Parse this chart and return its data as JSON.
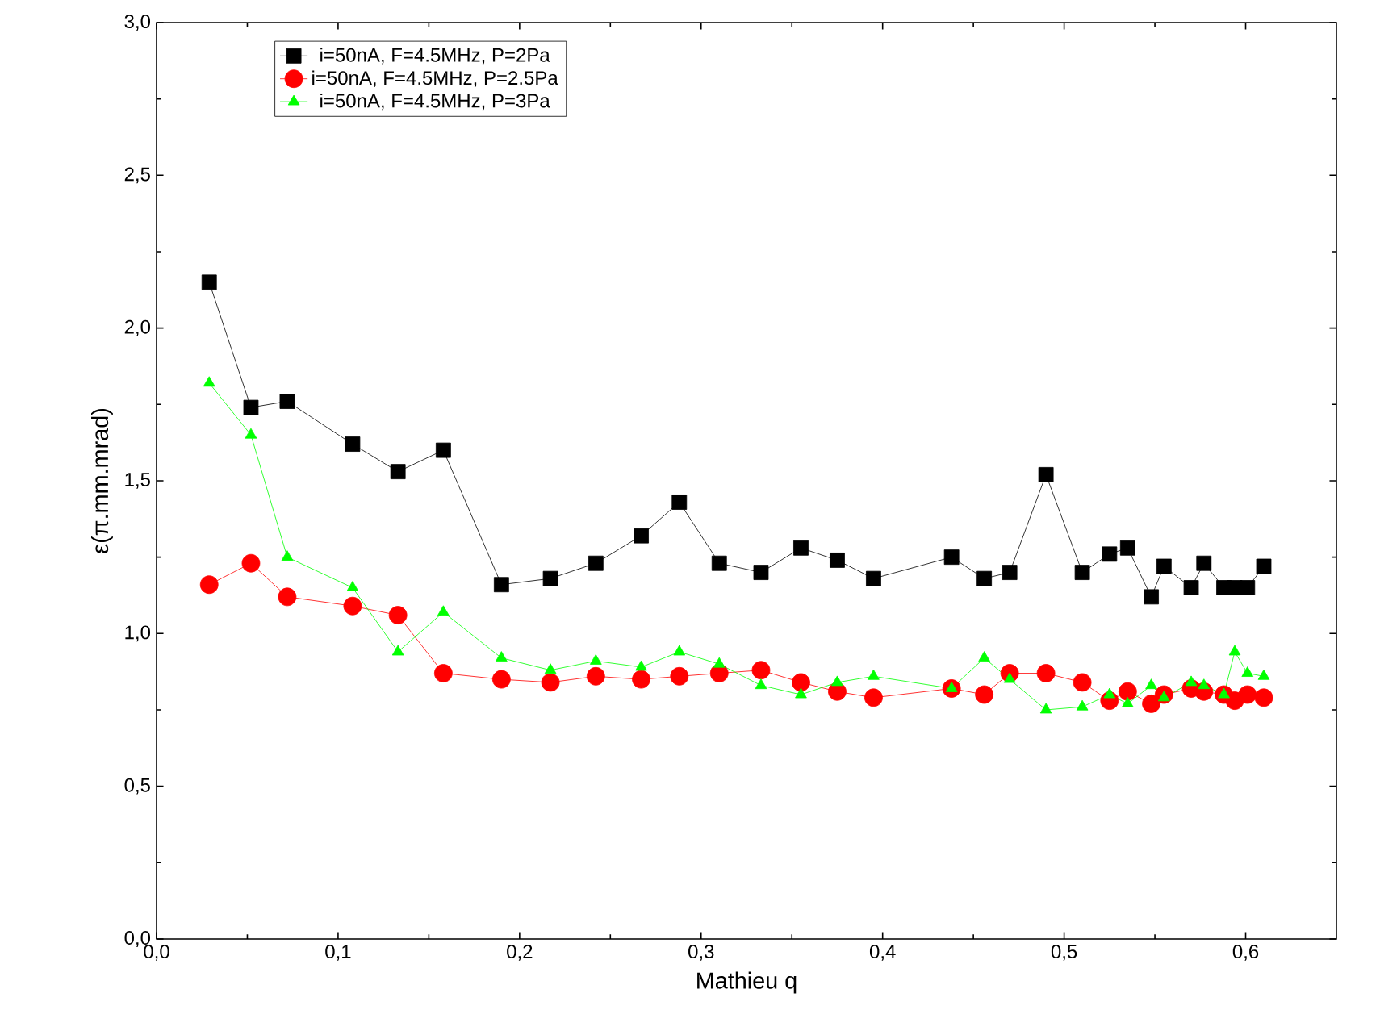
{
  "chart_data": {
    "type": "line",
    "xlabel": "Mathieu q",
    "ylabel": "ε(π.mm.mrad)",
    "x": [
      0.029,
      0.052,
      0.072,
      0.108,
      0.133,
      0.158,
      0.19,
      0.217,
      0.242,
      0.267,
      0.288,
      0.31,
      0.333,
      0.355,
      0.375,
      0.395,
      0.438,
      0.456,
      0.47,
      0.49,
      0.51,
      0.525,
      0.535,
      0.548,
      0.555,
      0.57,
      0.577,
      0.588,
      0.594,
      0.601,
      0.61
    ],
    "series": [
      {
        "name": "i=50nA, F=4.5MHz, P=2Pa",
        "color": "#000000",
        "marker": "square",
        "values": [
          2.15,
          1.74,
          1.76,
          1.62,
          1.53,
          1.6,
          1.16,
          1.18,
          1.23,
          1.32,
          1.43,
          1.23,
          1.2,
          1.28,
          1.24,
          1.18,
          1.25,
          1.18,
          1.2,
          1.52,
          1.2,
          1.26,
          1.28,
          1.12,
          1.22,
          1.15,
          1.23,
          1.15,
          1.15,
          1.15,
          1.22
        ]
      },
      {
        "name": "i=50nA, F=4.5MHz, P=2.5Pa",
        "color": "#ff0000",
        "marker": "circle",
        "values": [
          1.16,
          1.23,
          1.12,
          1.09,
          1.06,
          0.87,
          0.85,
          0.84,
          0.86,
          0.85,
          0.86,
          0.87,
          0.88,
          0.84,
          0.81,
          0.79,
          0.82,
          0.8,
          0.87,
          0.87,
          0.84,
          0.78,
          0.81,
          0.77,
          0.8,
          0.82,
          0.81,
          0.8,
          0.78,
          0.8,
          0.79
        ]
      },
      {
        "name": "i=50nA, F=4.5MHz, P=3Pa",
        "color": "#00ff00",
        "marker": "triangle",
        "values": [
          1.82,
          1.65,
          1.25,
          1.15,
          0.94,
          1.07,
          0.92,
          0.88,
          0.91,
          0.89,
          0.94,
          0.9,
          0.83,
          0.8,
          0.84,
          0.86,
          0.82,
          0.92,
          0.85,
          0.75,
          0.76,
          0.8,
          0.77,
          0.83,
          0.79,
          0.84,
          0.83,
          0.8,
          0.94,
          0.87,
          0.86
        ]
      }
    ],
    "xlim": [
      0,
      0.65
    ],
    "ylim": [
      0,
      3.0
    ],
    "xticks": [
      {
        "value": 0.0,
        "label": "0,0"
      },
      {
        "value": 0.1,
        "label": "0,1"
      },
      {
        "value": 0.2,
        "label": "0,2"
      },
      {
        "value": 0.3,
        "label": "0,3"
      },
      {
        "value": 0.4,
        "label": "0,4"
      },
      {
        "value": 0.5,
        "label": "0,5"
      },
      {
        "value": 0.6,
        "label": "0,6"
      }
    ],
    "yticks": [
      {
        "value": 0.0,
        "label": "0,0"
      },
      {
        "value": 0.5,
        "label": "0,5"
      },
      {
        "value": 1.0,
        "label": "1,0"
      },
      {
        "value": 1.5,
        "label": "1,5"
      },
      {
        "value": 2.0,
        "label": "2,0"
      },
      {
        "value": 2.5,
        "label": "2,5"
      },
      {
        "value": 3.0,
        "label": "3,0"
      }
    ],
    "grid": false,
    "legend": "top left",
    "line_style": "solid"
  }
}
